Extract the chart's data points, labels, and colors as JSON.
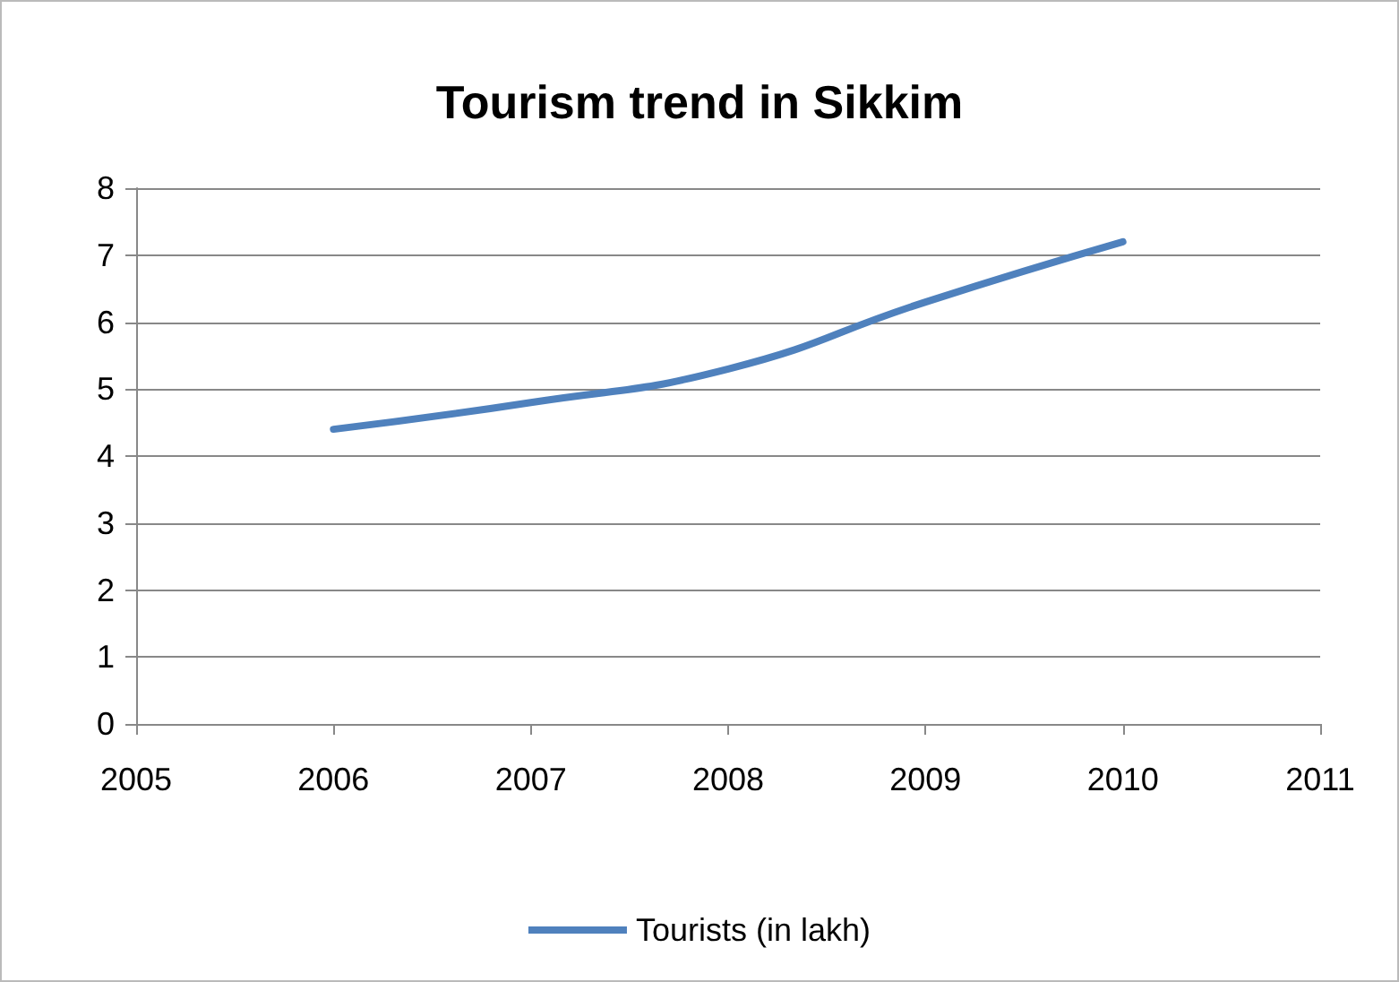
{
  "chart_data": {
    "type": "line",
    "title": "Tourism trend in Sikkim",
    "x": [
      2006,
      2007,
      2008,
      2009,
      2010
    ],
    "series": [
      {
        "name": "Tourists (in lakh)",
        "color": "#4f81bd",
        "values": [
          4.4,
          4.8,
          5.3,
          6.3,
          7.2
        ]
      }
    ],
    "xlim": [
      2005,
      2011
    ],
    "xticks": [
      2005,
      2006,
      2007,
      2008,
      2009,
      2010,
      2011
    ],
    "ylim": [
      0,
      8
    ],
    "yticks": [
      0,
      1,
      2,
      3,
      4,
      5,
      6,
      7,
      8
    ],
    "grid": "y",
    "legend": "bottom",
    "marker": "none",
    "line_style": "solid"
  }
}
